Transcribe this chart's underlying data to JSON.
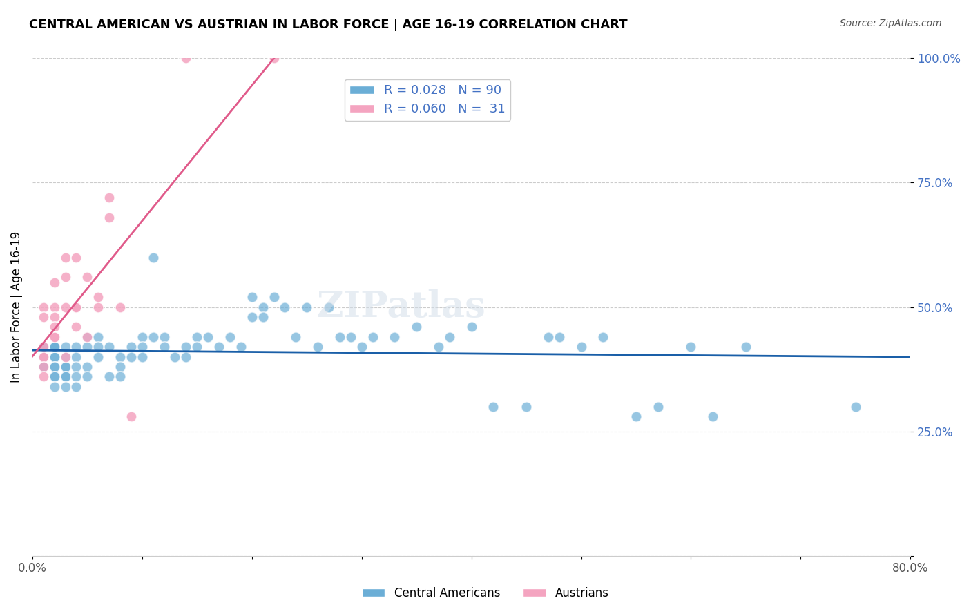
{
  "title": "CENTRAL AMERICAN VS AUSTRIAN IN LABOR FORCE | AGE 16-19 CORRELATION CHART",
  "source": "Source: ZipAtlas.com",
  "ylabel": "In Labor Force | Age 16-19",
  "xlabel": "",
  "xlim": [
    0.0,
    0.8
  ],
  "ylim": [
    0.0,
    1.0
  ],
  "yticks": [
    0.0,
    0.25,
    0.5,
    0.75,
    1.0
  ],
  "ytick_labels": [
    "",
    "25.0%",
    "50.0%",
    "75.0%",
    "100.0%"
  ],
  "xticks": [
    0.0,
    0.1,
    0.2,
    0.3,
    0.4,
    0.5,
    0.6,
    0.7,
    0.8
  ],
  "xtick_labels": [
    "0.0%",
    "",
    "",
    "",
    "",
    "",
    "",
    "",
    "80.0%"
  ],
  "blue_color": "#6baed6",
  "pink_color": "#f4a4c0",
  "blue_line_color": "#1a5fa8",
  "pink_line_color": "#e05a8a",
  "watermark": "ZIPatlas",
  "legend_blue_r": "0.028",
  "legend_blue_n": "90",
  "legend_pink_r": "0.060",
  "legend_pink_n": "31",
  "blue_points_x": [
    0.01,
    0.01,
    0.01,
    0.01,
    0.01,
    0.01,
    0.01,
    0.02,
    0.02,
    0.02,
    0.02,
    0.02,
    0.02,
    0.02,
    0.02,
    0.02,
    0.02,
    0.03,
    0.03,
    0.03,
    0.03,
    0.03,
    0.03,
    0.03,
    0.04,
    0.04,
    0.04,
    0.04,
    0.04,
    0.05,
    0.05,
    0.05,
    0.05,
    0.06,
    0.06,
    0.06,
    0.07,
    0.07,
    0.08,
    0.08,
    0.08,
    0.09,
    0.09,
    0.1,
    0.1,
    0.1,
    0.11,
    0.11,
    0.12,
    0.12,
    0.13,
    0.14,
    0.14,
    0.15,
    0.15,
    0.16,
    0.17,
    0.18,
    0.19,
    0.2,
    0.2,
    0.21,
    0.21,
    0.22,
    0.23,
    0.24,
    0.25,
    0.26,
    0.27,
    0.28,
    0.29,
    0.3,
    0.31,
    0.33,
    0.35,
    0.37,
    0.38,
    0.4,
    0.42,
    0.45,
    0.47,
    0.48,
    0.5,
    0.52,
    0.55,
    0.57,
    0.6,
    0.62,
    0.65,
    0.75
  ],
  "blue_points_y": [
    0.42,
    0.42,
    0.4,
    0.4,
    0.38,
    0.38,
    0.38,
    0.42,
    0.4,
    0.4,
    0.38,
    0.38,
    0.36,
    0.36,
    0.34,
    0.42,
    0.42,
    0.42,
    0.4,
    0.38,
    0.38,
    0.36,
    0.36,
    0.34,
    0.42,
    0.4,
    0.38,
    0.36,
    0.34,
    0.44,
    0.42,
    0.38,
    0.36,
    0.44,
    0.42,
    0.4,
    0.42,
    0.36,
    0.4,
    0.38,
    0.36,
    0.42,
    0.4,
    0.44,
    0.42,
    0.4,
    0.6,
    0.44,
    0.44,
    0.42,
    0.4,
    0.42,
    0.4,
    0.44,
    0.42,
    0.44,
    0.42,
    0.44,
    0.42,
    0.52,
    0.48,
    0.5,
    0.48,
    0.52,
    0.5,
    0.44,
    0.5,
    0.42,
    0.5,
    0.44,
    0.44,
    0.42,
    0.44,
    0.44,
    0.46,
    0.42,
    0.44,
    0.46,
    0.3,
    0.3,
    0.44,
    0.44,
    0.42,
    0.44,
    0.28,
    0.3,
    0.42,
    0.28,
    0.42,
    0.3
  ],
  "pink_points_x": [
    0.01,
    0.01,
    0.01,
    0.01,
    0.01,
    0.01,
    0.01,
    0.02,
    0.02,
    0.02,
    0.02,
    0.02,
    0.02,
    0.03,
    0.03,
    0.03,
    0.03,
    0.04,
    0.04,
    0.04,
    0.04,
    0.05,
    0.05,
    0.06,
    0.06,
    0.07,
    0.07,
    0.08,
    0.09,
    0.14,
    0.22
  ],
  "pink_points_y": [
    0.42,
    0.4,
    0.4,
    0.38,
    0.36,
    0.5,
    0.48,
    0.55,
    0.5,
    0.48,
    0.46,
    0.44,
    0.44,
    0.6,
    0.56,
    0.5,
    0.4,
    0.6,
    0.5,
    0.5,
    0.46,
    0.56,
    0.44,
    0.52,
    0.5,
    0.72,
    0.68,
    0.5,
    0.28,
    1.0,
    1.0
  ]
}
